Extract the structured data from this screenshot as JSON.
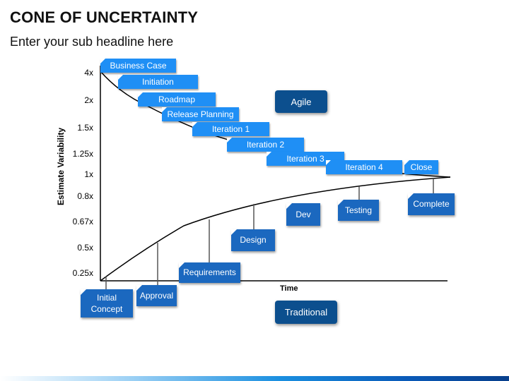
{
  "header": {
    "title": "CONE OF UNCERTAINTY",
    "subtitle": "Enter your sub headline here"
  },
  "axes": {
    "ylabel": "Estimate Variability",
    "xlabel": "Time",
    "yticks": [
      "4x",
      "2x",
      "1.5x",
      "1.25x",
      "1x",
      "0.8x",
      "0.67x",
      "0.5x",
      "0.25x"
    ]
  },
  "agile": {
    "label": "Agile",
    "phases": [
      "Business Case",
      "Initiation",
      "Roadmap",
      "Release Planning",
      "Iteration 1",
      "Iteration 2",
      "Iteration 3",
      "Iteration 4",
      "Close"
    ]
  },
  "traditional": {
    "label": "Traditional",
    "phases": [
      "Initial Concept",
      "Approval",
      "Requirements",
      "Design",
      "Dev",
      "Testing",
      "Complete"
    ]
  },
  "colors": {
    "agile_tag": "#1f8ff5",
    "traditional_tag": "#1b68bf",
    "method_box": "#0c4f8e"
  }
}
